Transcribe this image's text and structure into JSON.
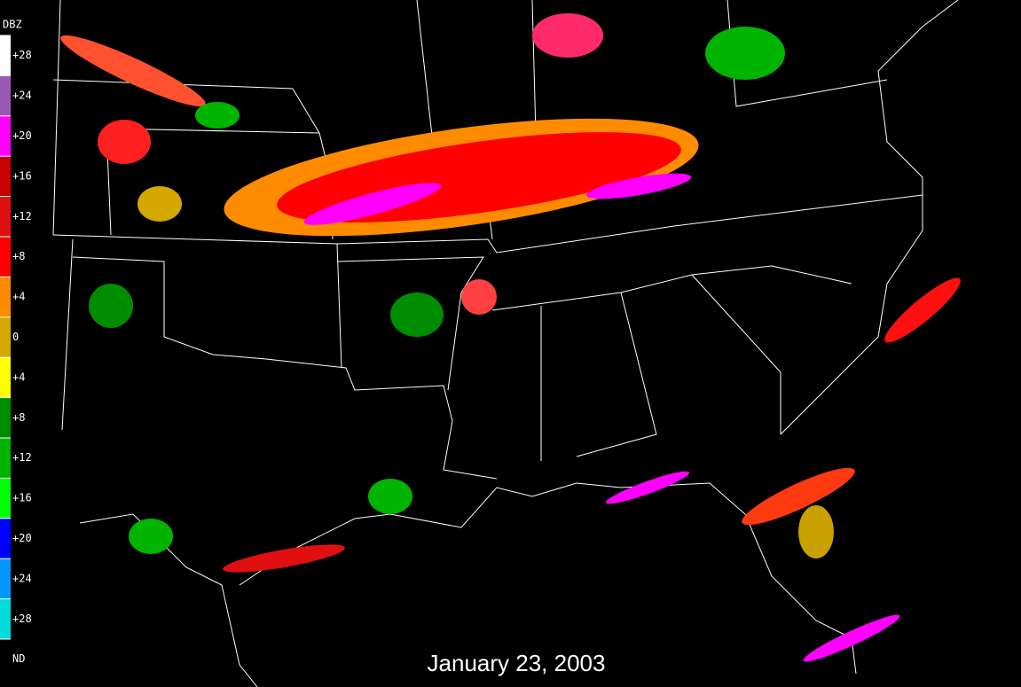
{
  "legend": {
    "title": "DBZ",
    "entries": [
      {
        "label": "+28",
        "color": "#ffffff"
      },
      {
        "label": "+24",
        "color": "#9b59b6"
      },
      {
        "label": "+20",
        "color": "#ff00ff"
      },
      {
        "label": "+16",
        "color": "#c80000"
      },
      {
        "label": "+12",
        "color": "#e01010"
      },
      {
        "label": "+8",
        "color": "#ff0000"
      },
      {
        "label": "+4",
        "color": "#ff8c00"
      },
      {
        "label": "0",
        "color": "#d4a800"
      },
      {
        "label": "+4",
        "color": "#ffff00"
      },
      {
        "label": "+8",
        "color": "#008c00"
      },
      {
        "label": "+12",
        "color": "#00b400"
      },
      {
        "label": "+16",
        "color": "#00ff00"
      },
      {
        "label": "+20",
        "color": "#0000ff"
      },
      {
        "label": "+24",
        "color": "#0096ff"
      },
      {
        "label": "+28",
        "color": "#00dcdc"
      },
      {
        "label": "ND",
        "color": "#000000"
      }
    ]
  },
  "caption": "January 23, 2003"
}
